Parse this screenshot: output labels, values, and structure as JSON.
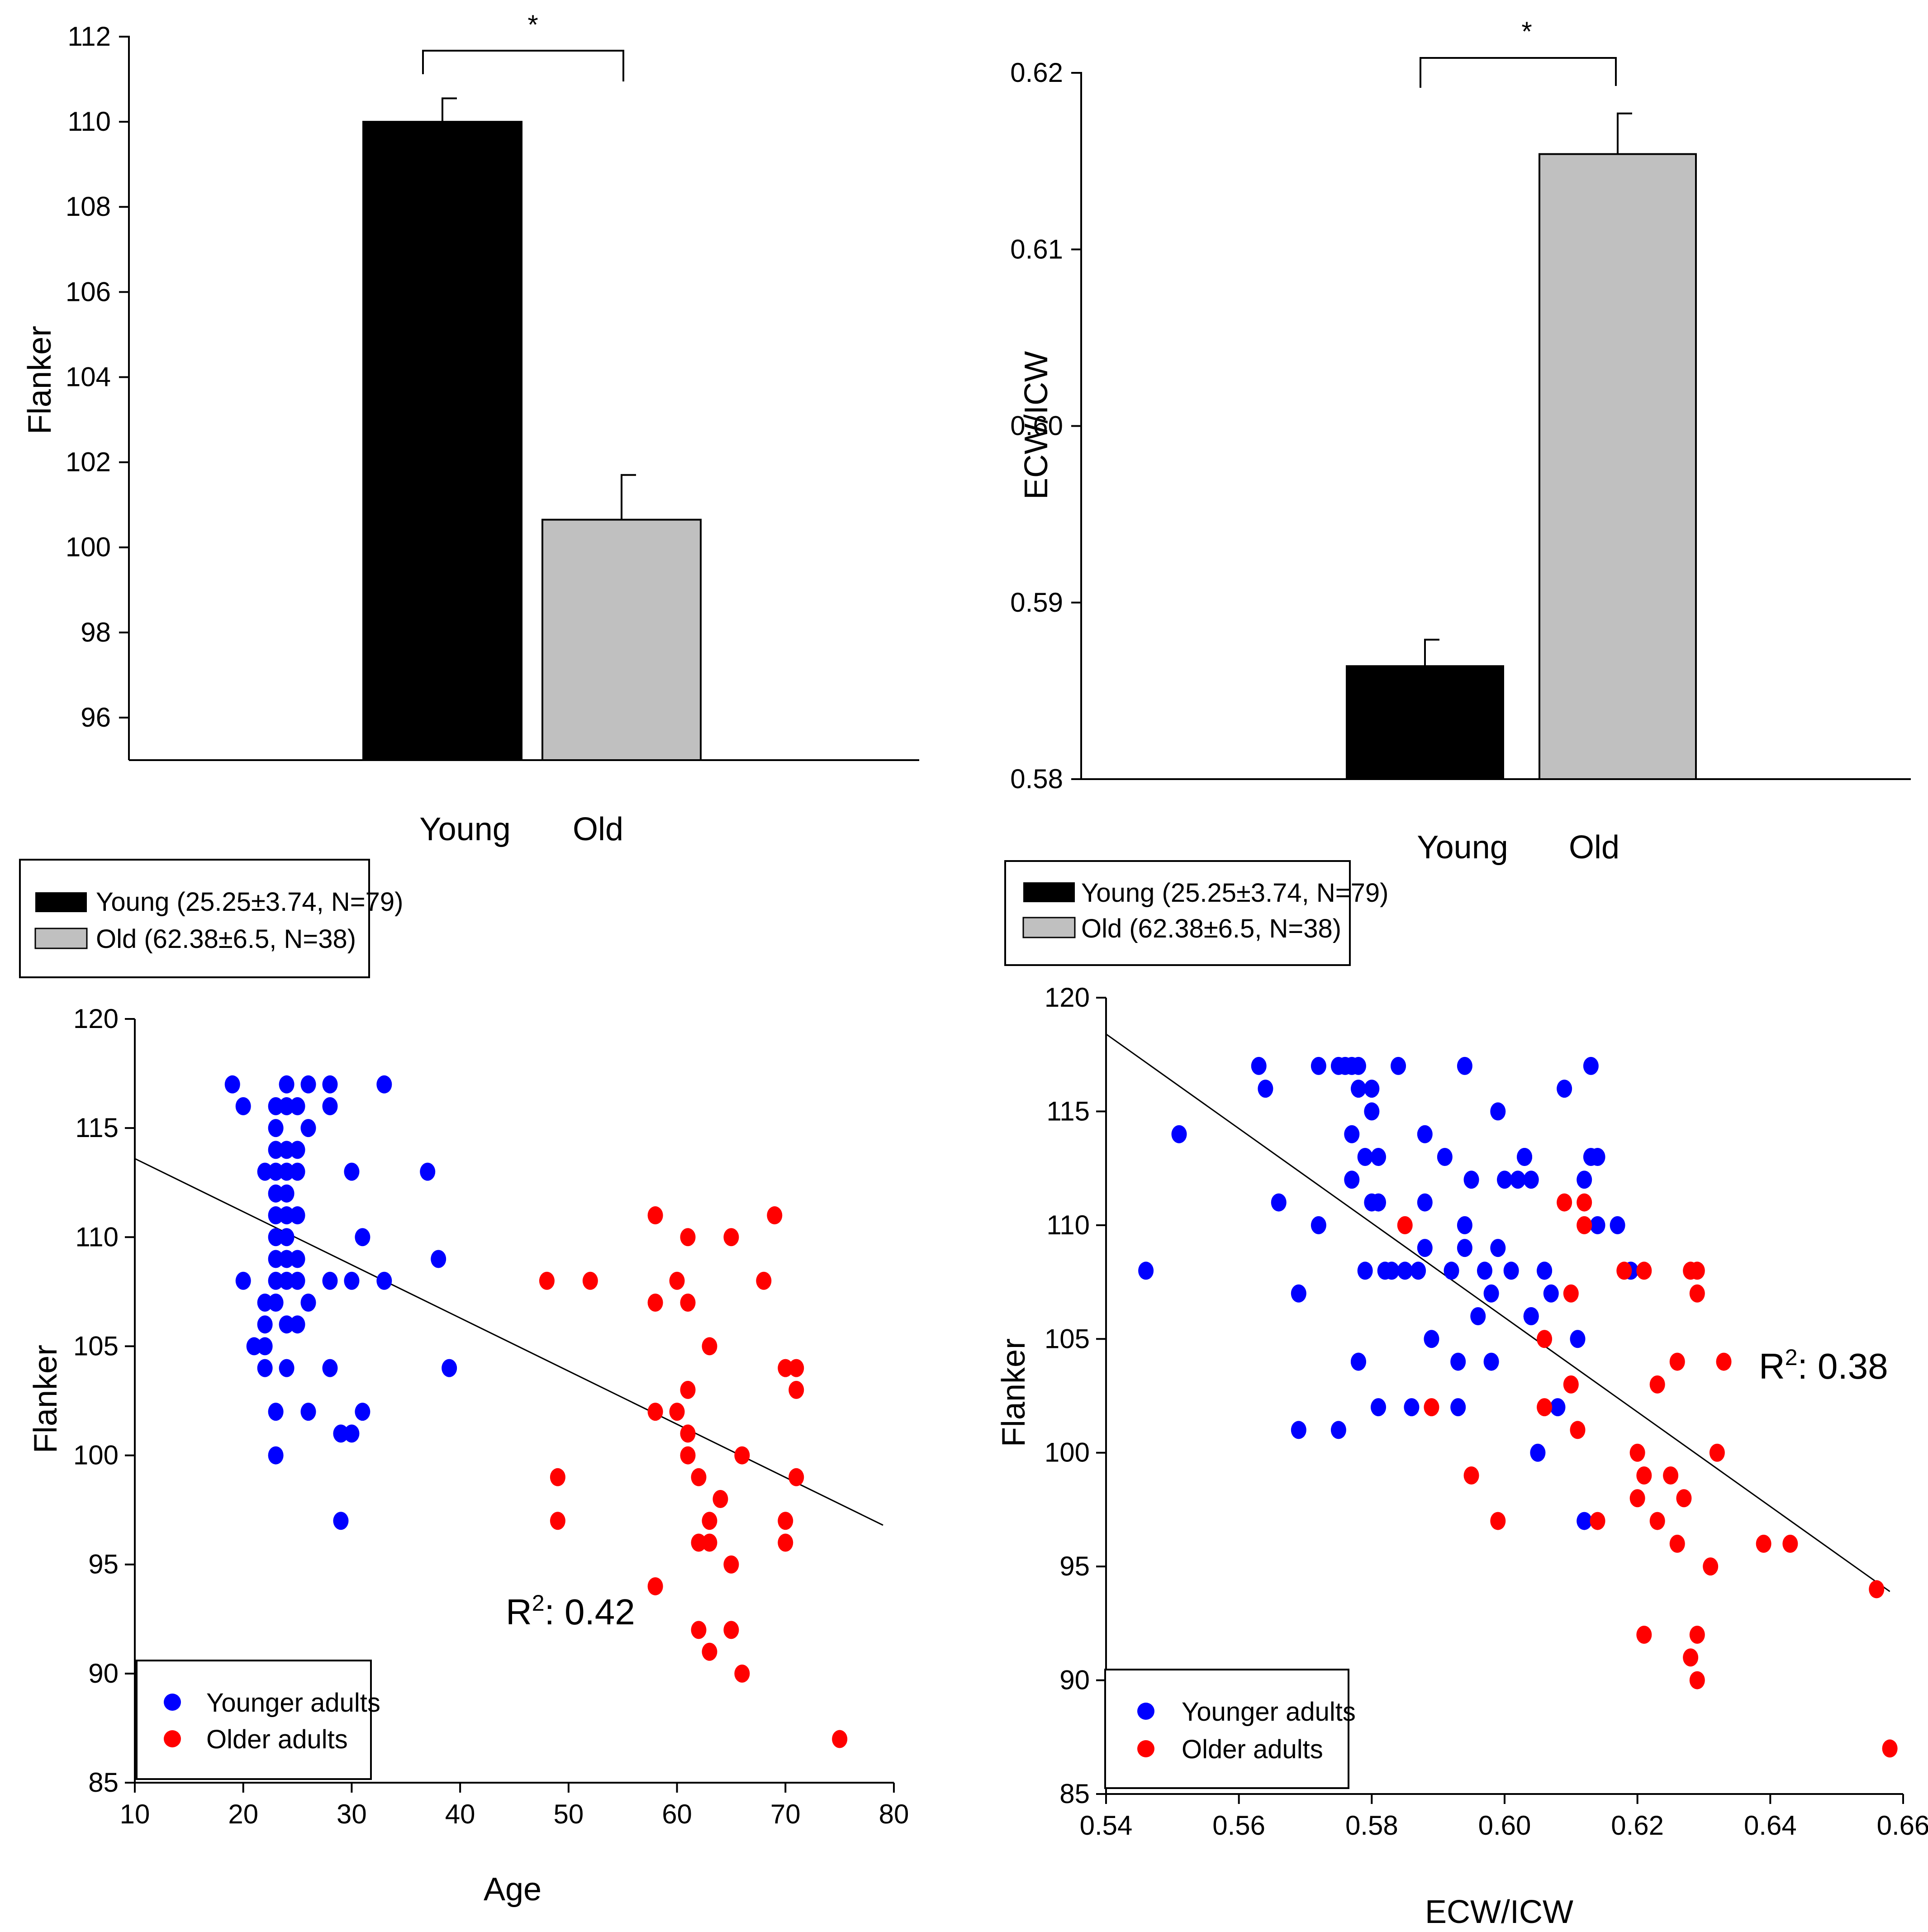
{
  "chart_data": [
    {
      "id": "A",
      "type": "bar",
      "xlabel": "",
      "ylabel": "Flanker",
      "ylim": [
        95,
        112
      ],
      "yticks": [
        96,
        98,
        100,
        102,
        104,
        106,
        108,
        110,
        112
      ],
      "categories": [
        "Young",
        "Old"
      ],
      "values": [
        110,
        100.65
      ],
      "errors": [
        0.55,
        1.05
      ],
      "significance": "*",
      "legend": [
        "Young (25.25±3.74, N=79)",
        "Old (62.38±6.5, N=38)"
      ]
    },
    {
      "id": "B",
      "type": "bar",
      "xlabel": "",
      "ylabel": "ECW/ICW",
      "ylim": [
        0.58,
        0.62
      ],
      "yticks": [
        "0.58",
        "0.59",
        "0.60",
        "0.61",
        "0.62"
      ],
      "categories": [
        "Young",
        "Old"
      ],
      "values": [
        0.5864,
        0.6154
      ],
      "errors": [
        0.0015,
        0.0023
      ],
      "significance": "*",
      "legend": [
        "Young (25.25±3.74, N=79)",
        "Old (62.38±6.5, N=38)"
      ]
    },
    {
      "id": "C",
      "type": "scatter",
      "xlabel": "Age",
      "ylabel": "Flanker",
      "xlim": [
        10,
        80
      ],
      "ylim": [
        85,
        120
      ],
      "xticks": [
        10,
        20,
        30,
        40,
        50,
        60,
        70,
        80
      ],
      "yticks": [
        85,
        90,
        95,
        100,
        105,
        110,
        115,
        120
      ],
      "r2_label": "R",
      "r2_exp": "2",
      "r2_value": ": 0.42",
      "fit_line": [
        [
          10,
          113.6
        ],
        [
          79,
          96.8
        ]
      ],
      "legend": [
        "Younger adults",
        "Older adults"
      ],
      "series": [
        {
          "name": "Younger adults",
          "color": "#0000ff",
          "points": [
            [
              19,
              117
            ],
            [
              20,
              116
            ],
            [
              20,
              108
            ],
            [
              21,
              105
            ],
            [
              22,
              105
            ],
            [
              22,
              104
            ],
            [
              22,
              106
            ],
            [
              22,
              107
            ],
            [
              22,
              113
            ],
            [
              23,
              113
            ],
            [
              23,
              116
            ],
            [
              23,
              115
            ],
            [
              23,
              114
            ],
            [
              23,
              112
            ],
            [
              23,
              111
            ],
            [
              23,
              110
            ],
            [
              23,
              109
            ],
            [
              23,
              108
            ],
            [
              23,
              107
            ],
            [
              23,
              102
            ],
            [
              23,
              100
            ],
            [
              24,
              117
            ],
            [
              24,
              116
            ],
            [
              24,
              114
            ],
            [
              24,
              113
            ],
            [
              24,
              112
            ],
            [
              24,
              111
            ],
            [
              24,
              110
            ],
            [
              24,
              109
            ],
            [
              24,
              108
            ],
            [
              24,
              106
            ],
            [
              24,
              104
            ],
            [
              25,
              116
            ],
            [
              25,
              114
            ],
            [
              25,
              113
            ],
            [
              25,
              111
            ],
            [
              25,
              109
            ],
            [
              25,
              108
            ],
            [
              25,
              106
            ],
            [
              26,
              117
            ],
            [
              26,
              115
            ],
            [
              26,
              107
            ],
            [
              26,
              102
            ],
            [
              28,
              117
            ],
            [
              28,
              116
            ],
            [
              28,
              108
            ],
            [
              28,
              104
            ],
            [
              29,
              101
            ],
            [
              29,
              97
            ],
            [
              30,
              113
            ],
            [
              30,
              108
            ],
            [
              30,
              101
            ],
            [
              31,
              110
            ],
            [
              31,
              102
            ],
            [
              33,
              117
            ],
            [
              33,
              108
            ],
            [
              37,
              113
            ],
            [
              38,
              109
            ],
            [
              39,
              104
            ]
          ]
        },
        {
          "name": "Older adults",
          "color": "#ff0000",
          "points": [
            [
              48,
              108
            ],
            [
              49,
              99
            ],
            [
              49,
              97
            ],
            [
              52,
              108
            ],
            [
              58,
              111
            ],
            [
              58,
              107
            ],
            [
              58,
              102
            ],
            [
              58,
              94
            ],
            [
              60,
              108
            ],
            [
              60,
              102
            ],
            [
              61,
              110
            ],
            [
              61,
              107
            ],
            [
              61,
              103
            ],
            [
              61,
              101
            ],
            [
              61,
              100
            ],
            [
              62,
              99
            ],
            [
              62,
              96
            ],
            [
              62,
              92
            ],
            [
              63,
              105
            ],
            [
              63,
              97
            ],
            [
              63,
              96
            ],
            [
              63,
              91
            ],
            [
              64,
              98
            ],
            [
              65,
              110
            ],
            [
              65,
              95
            ],
            [
              65,
              92
            ],
            [
              66,
              100
            ],
            [
              66,
              90
            ],
            [
              68,
              108
            ],
            [
              69,
              111
            ],
            [
              70,
              104
            ],
            [
              70,
              97
            ],
            [
              70,
              96
            ],
            [
              71,
              104
            ],
            [
              71,
              103
            ],
            [
              71,
              99
            ],
            [
              75,
              87
            ]
          ]
        }
      ]
    },
    {
      "id": "D",
      "type": "scatter",
      "xlabel": "ECW/ICW",
      "ylabel": "Flanker",
      "xlim": [
        0.54,
        0.66
      ],
      "ylim": [
        85,
        120
      ],
      "xticks": [
        "0.54",
        "0.56",
        "0.58",
        "0.60",
        "0.62",
        "0.64",
        "0.66"
      ],
      "yticks": [
        85,
        90,
        95,
        100,
        105,
        110,
        115,
        120
      ],
      "r2_label": "R",
      "r2_exp": "2",
      "r2_value": ": 0.38",
      "fit_line": [
        [
          0.54,
          118.4
        ],
        [
          0.658,
          93.9
        ]
      ],
      "legend": [
        "Younger adults",
        "Older adults"
      ],
      "series": [
        {
          "name": "Younger adults",
          "color": "#0000ff",
          "points": [
            [
              0.546,
              108
            ],
            [
              0.551,
              114
            ],
            [
              0.563,
              117
            ],
            [
              0.564,
              116
            ],
            [
              0.566,
              111
            ],
            [
              0.569,
              107
            ],
            [
              0.569,
              101
            ],
            [
              0.572,
              117
            ],
            [
              0.572,
              110
            ],
            [
              0.575,
              101
            ],
            [
              0.575,
              117
            ],
            [
              0.576,
              117
            ],
            [
              0.577,
              114
            ],
            [
              0.577,
              112
            ],
            [
              0.577,
              117
            ],
            [
              0.578,
              116
            ],
            [
              0.578,
              104
            ],
            [
              0.578,
              117
            ],
            [
              0.578,
              104
            ],
            [
              0.579,
              113
            ],
            [
              0.579,
              108
            ],
            [
              0.58,
              111
            ],
            [
              0.58,
              115
            ],
            [
              0.58,
              116
            ],
            [
              0.581,
              102
            ],
            [
              0.581,
              113
            ],
            [
              0.581,
              111
            ],
            [
              0.582,
              108
            ],
            [
              0.583,
              108
            ],
            [
              0.584,
              117
            ],
            [
              0.585,
              108
            ],
            [
              0.586,
              102
            ],
            [
              0.587,
              108
            ],
            [
              0.588,
              111
            ],
            [
              0.588,
              114
            ],
            [
              0.588,
              109
            ],
            [
              0.589,
              105
            ],
            [
              0.591,
              113
            ],
            [
              0.592,
              108
            ],
            [
              0.593,
              102
            ],
            [
              0.593,
              104
            ],
            [
              0.594,
              117
            ],
            [
              0.594,
              109
            ],
            [
              0.594,
              110
            ],
            [
              0.595,
              112
            ],
            [
              0.596,
              106
            ],
            [
              0.597,
              108
            ],
            [
              0.598,
              107
            ],
            [
              0.598,
              104
            ],
            [
              0.599,
              109
            ],
            [
              0.599,
              115
            ],
            [
              0.6,
              112
            ],
            [
              0.601,
              108
            ],
            [
              0.602,
              112
            ],
            [
              0.603,
              113
            ],
            [
              0.603,
              113
            ],
            [
              0.604,
              112
            ],
            [
              0.604,
              106
            ],
            [
              0.604,
              106
            ],
            [
              0.605,
              100
            ],
            [
              0.606,
              108
            ],
            [
              0.606,
              108
            ],
            [
              0.607,
              107
            ],
            [
              0.608,
              102
            ],
            [
              0.609,
              116
            ],
            [
              0.611,
              105
            ],
            [
              0.612,
              97
            ],
            [
              0.612,
              112
            ],
            [
              0.613,
              117
            ],
            [
              0.613,
              113
            ],
            [
              0.614,
              113
            ],
            [
              0.614,
              110
            ],
            [
              0.617,
              110
            ],
            [
              0.619,
              108
            ]
          ]
        },
        {
          "name": "Older adults",
          "color": "#ff0000",
          "points": [
            [
              0.585,
              110
            ],
            [
              0.589,
              102
            ],
            [
              0.595,
              99
            ],
            [
              0.599,
              97
            ],
            [
              0.606,
              105
            ],
            [
              0.606,
              102
            ],
            [
              0.609,
              111
            ],
            [
              0.61,
              107
            ],
            [
              0.61,
              103
            ],
            [
              0.611,
              101
            ],
            [
              0.612,
              111
            ],
            [
              0.612,
              110
            ],
            [
              0.614,
              97
            ],
            [
              0.618,
              108
            ],
            [
              0.62,
              100
            ],
            [
              0.62,
              98
            ],
            [
              0.621,
              99
            ],
            [
              0.621,
              108
            ],
            [
              0.621,
              92
            ],
            [
              0.623,
              103
            ],
            [
              0.623,
              97
            ],
            [
              0.625,
              99
            ],
            [
              0.626,
              104
            ],
            [
              0.626,
              96
            ],
            [
              0.627,
              98
            ],
            [
              0.628,
              108
            ],
            [
              0.628,
              91
            ],
            [
              0.629,
              108
            ],
            [
              0.629,
              107
            ],
            [
              0.629,
              92
            ],
            [
              0.629,
              90
            ],
            [
              0.631,
              95
            ],
            [
              0.632,
              100
            ],
            [
              0.633,
              104
            ],
            [
              0.639,
              96
            ],
            [
              0.643,
              96
            ],
            [
              0.656,
              94
            ],
            [
              0.658,
              87
            ]
          ]
        }
      ]
    }
  ],
  "colors": {
    "young_bar": "#000000",
    "old_bar": "#c0c0c0",
    "younger_point": "#0000ff",
    "older_point": "#ff0000"
  }
}
